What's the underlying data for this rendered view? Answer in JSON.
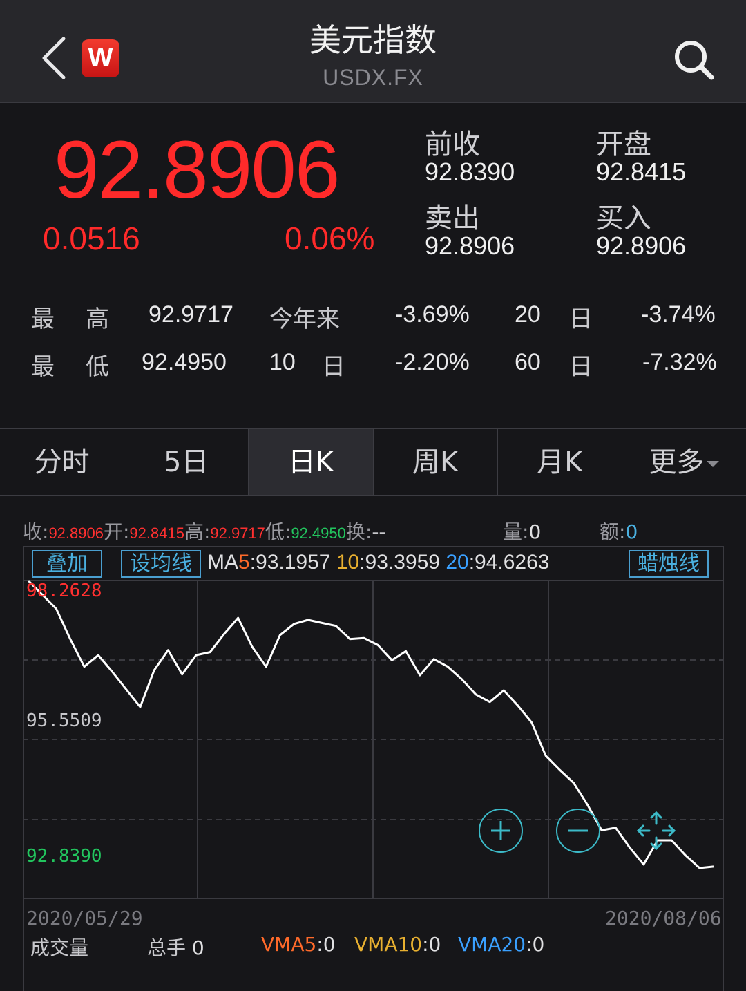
{
  "header": {
    "title": "美元指数",
    "subtitle": "USDX.FX",
    "logo_letter": "W"
  },
  "quote": {
    "price": "92.8906",
    "change": "0.0516",
    "change_pct": "0.06%",
    "prev_close_label": "前收",
    "prev_close": "92.8390",
    "open_label": "开盘",
    "open": "92.8415",
    "sell_label": "卖出",
    "sell": "92.8906",
    "buy_label": "买入",
    "buy": "92.8906"
  },
  "stats": {
    "high_label_a": "最",
    "high_label_b": "高",
    "high": "92.9717",
    "low_label_a": "最",
    "low_label_b": "低",
    "low": "92.4950",
    "ytd_label": "今年来",
    "ytd": "-3.69%",
    "d10_num": "10",
    "d10_unit": "日",
    "d10": "-2.20%",
    "d20_num": "20",
    "d20_unit": "日",
    "d20": "-3.74%",
    "d60_num": "60",
    "d60_unit": "日",
    "d60": "-7.32%"
  },
  "tabs": [
    {
      "label": "分时"
    },
    {
      "label": "5日"
    },
    {
      "label": "日K"
    },
    {
      "label": "周K"
    },
    {
      "label": "月K"
    },
    {
      "label": "更多"
    }
  ],
  "ohlc": {
    "close_label": "收:",
    "close": "92.8906",
    "open_label": "开:",
    "open": "92.8415",
    "high_label": "高:",
    "high": "92.9717",
    "low_label": "低:",
    "low": "92.4950",
    "turnover_label": "换:",
    "turnover": "--",
    "volume_label": "量:",
    "volume": "0",
    "amount_label": "额:",
    "amount": "0"
  },
  "ma": {
    "overlay_btn": "叠加",
    "set_ma_btn": "设均线",
    "ma5_label": "MA",
    "ma5_num": "5",
    "ma5": ":93.1957",
    "ma10_num": "10",
    "ma10": ":93.3959",
    "ma20_num": "20",
    "ma20": ":94.6263",
    "candle_btn": "蜡烛线"
  },
  "chart_data": {
    "type": "line",
    "y_max_label": "98.2628",
    "y_mid_label": "95.5509",
    "y_min_label": "92.8390",
    "x_start": "2020/05/29",
    "x_end": "2020/08/06",
    "ylim": [
      92.839,
      98.2628
    ],
    "values": [
      98.26,
      97.98,
      97.7,
      97.1,
      96.55,
      96.78,
      96.45,
      96.1,
      95.75,
      96.48,
      96.88,
      96.4,
      96.78,
      96.84,
      97.2,
      97.52,
      96.95,
      96.55,
      97.18,
      97.4,
      97.48,
      97.42,
      97.36,
      97.1,
      97.12,
      96.98,
      96.68,
      96.86,
      96.38,
      96.7,
      96.55,
      96.3,
      96.0,
      95.85,
      96.08,
      95.78,
      95.44,
      94.78,
      94.5,
      94.24,
      93.8,
      93.3,
      93.35,
      92.96,
      92.62,
      93.1,
      93.1,
      92.8,
      92.55,
      92.58
    ]
  },
  "volume": {
    "label": "成交量",
    "total_label": "总手",
    "total": "0",
    "vma5_label": "VMA5",
    "vma5": ":0",
    "vma10_label": "VMA10",
    "vma10": ":0",
    "vma20_label": "VMA20",
    "vma20": ":0"
  },
  "colors": {
    "up": "#ff2a2a",
    "down": "#22c55e",
    "accent": "#4ab0e0",
    "ma5": "#ff6a2a",
    "ma10": "#e8b030",
    "ma20": "#3aa0ff"
  }
}
